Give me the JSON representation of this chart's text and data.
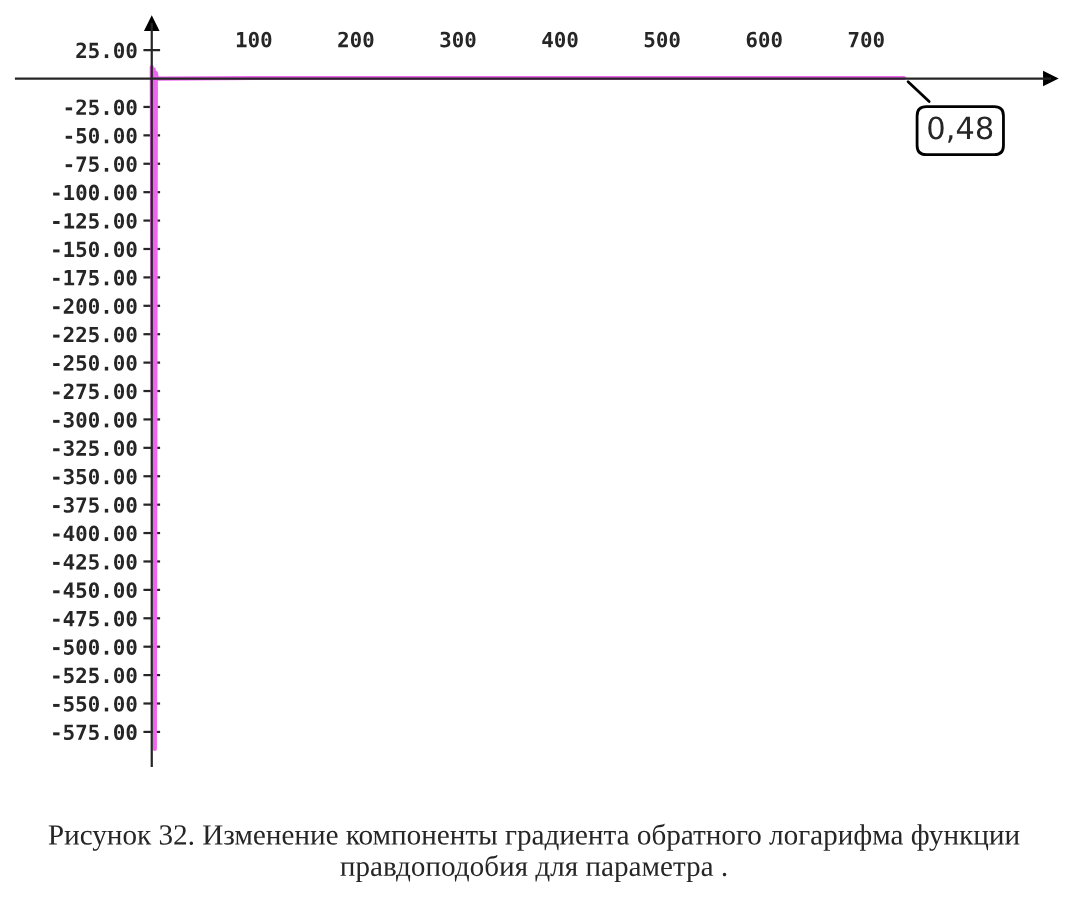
{
  "chart_data": {
    "type": "line",
    "title": "Рисунок 32. Изменение компоненты градиента обратного логарифма функции правдоподобия для параметра .",
    "x": [
      0,
      1,
      2,
      3,
      4,
      5,
      100,
      200,
      300,
      400,
      500,
      600,
      700,
      737
    ],
    "series": [
      {
        "color": "#ee66ee",
        "values": [
          10,
          -295,
          8,
          -590,
          5,
          0,
          0.48,
          0.48,
          0.48,
          0.48,
          0.48,
          0.48,
          0.48,
          0.48
        ]
      }
    ],
    "xlim": [
      -133,
      880
    ],
    "ylim": [
      -605,
      48
    ],
    "xticks": [
      100,
      200,
      300,
      400,
      500,
      600,
      700
    ],
    "yticks": [
      {
        "value": 25,
        "label": "25.00"
      },
      {
        "value": -25,
        "label": "-25.00"
      },
      {
        "value": -50,
        "label": "-50.00"
      },
      {
        "value": -75,
        "label": "-75.00"
      },
      {
        "value": -100,
        "label": "-100.00"
      },
      {
        "value": -125,
        "label": "-125.00"
      },
      {
        "value": -150,
        "label": "-150.00"
      },
      {
        "value": -175,
        "label": "-175.00"
      },
      {
        "value": -200,
        "label": "-200.00"
      },
      {
        "value": -225,
        "label": "-225.00"
      },
      {
        "value": -250,
        "label": "-250.00"
      },
      {
        "value": -275,
        "label": "-275.00"
      },
      {
        "value": -300,
        "label": "-300.00"
      },
      {
        "value": -325,
        "label": "-325.00"
      },
      {
        "value": -350,
        "label": "-350.00"
      },
      {
        "value": -375,
        "label": "-375.00"
      },
      {
        "value": -400,
        "label": "-400.00"
      },
      {
        "value": -425,
        "label": "-425.00"
      },
      {
        "value": -450,
        "label": "-450.00"
      },
      {
        "value": -475,
        "label": "-475.00"
      },
      {
        "value": -500,
        "label": "-500.00"
      },
      {
        "value": -525,
        "label": "-525.00"
      },
      {
        "value": -550,
        "label": "-550.00"
      },
      {
        "value": -575,
        "label": "-575.00"
      }
    ],
    "annotations": [
      {
        "text": "0,48",
        "x": 737,
        "y": 0.48
      }
    ],
    "grid": false,
    "legend": false,
    "marker": "none",
    "line_style": "solid"
  }
}
